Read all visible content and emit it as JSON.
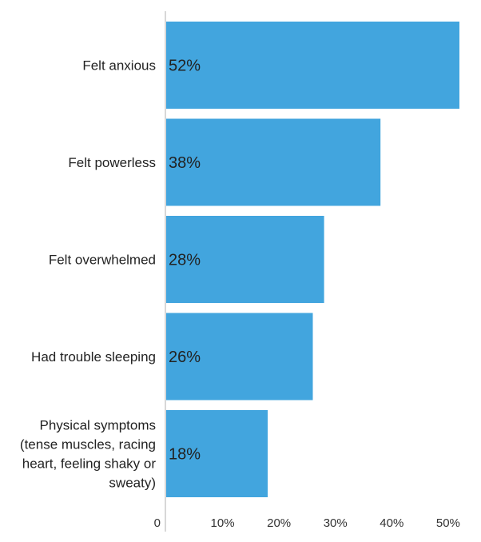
{
  "chart_data": {
    "type": "bar",
    "orientation": "horizontal",
    "categories": [
      [
        "Felt anxious"
      ],
      [
        "Felt powerless"
      ],
      [
        "Felt overwhelmed"
      ],
      [
        "Had trouble sleeping"
      ],
      [
        "Physical symptoms",
        "(tense muscles, racing",
        "heart, feeling shaky or",
        "sweaty)"
      ]
    ],
    "values": [
      52,
      38,
      28,
      26,
      18
    ],
    "data_labels": [
      "52%",
      "38%",
      "28%",
      "26%",
      "18%"
    ],
    "xlim": [
      0,
      52
    ],
    "xticks": [
      0,
      10,
      20,
      30,
      40,
      50
    ],
    "xtick_labels": [
      "0",
      "10%",
      "20%",
      "30%",
      "40%",
      "50%"
    ],
    "title": "",
    "xlabel": "",
    "ylabel": "",
    "grid": false,
    "bar_color": "#42a5de",
    "axis_color": "#cccccc"
  }
}
